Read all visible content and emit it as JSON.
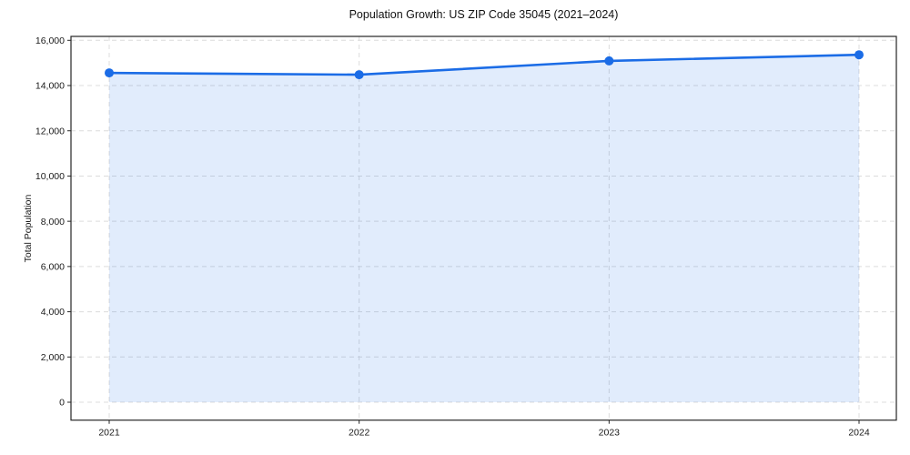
{
  "chart_data": {
    "type": "line",
    "title": "Population Growth: US ZIP Code 35045 (2021–2024)",
    "xlabel": "",
    "ylabel": "Total Population",
    "x": [
      2021,
      2022,
      2023,
      2024
    ],
    "xtick_labels": [
      "2021",
      "2022",
      "2023",
      "2024"
    ],
    "series": [
      {
        "name": "Total Population",
        "values": [
          14560,
          14480,
          15090,
          15360
        ]
      }
    ],
    "ylim": [
      0,
      16000
    ],
    "yticks": [
      0,
      2000,
      4000,
      6000,
      8000,
      10000,
      12000,
      14000,
      16000
    ],
    "ytick_labels": [
      "0",
      "2,000",
      "4,000",
      "6,000",
      "8,000",
      "10,000",
      "12,000",
      "14,000",
      "16,000"
    ],
    "grid": true,
    "legend": "none",
    "line_color": "#1b6ce6",
    "fill_opacity": 0.13,
    "marker": "circle"
  }
}
